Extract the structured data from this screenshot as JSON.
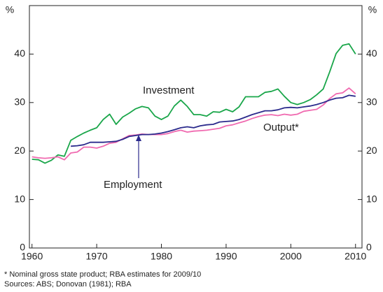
{
  "chart_data": {
    "type": "line",
    "ylabel": "%",
    "x": [
      1960,
      1961,
      1962,
      1963,
      1964,
      1965,
      1966,
      1967,
      1968,
      1969,
      1970,
      1971,
      1972,
      1973,
      1974,
      1975,
      1976,
      1977,
      1978,
      1979,
      1980,
      1981,
      1982,
      1983,
      1984,
      1985,
      1986,
      1987,
      1988,
      1989,
      1990,
      1991,
      1992,
      1993,
      1994,
      1995,
      1996,
      1997,
      1998,
      1999,
      2000,
      2001,
      2002,
      2003,
      2004,
      2005,
      2006,
      2007,
      2008,
      2009,
      2010
    ],
    "series": [
      {
        "name": "Investment",
        "color": "#1aa64a",
        "values": [
          18.3,
          18.2,
          17.5,
          18.1,
          19.2,
          18.9,
          22.2,
          23,
          23.7,
          24.3,
          24.8,
          26.5,
          27.6,
          25.5,
          27,
          27.8,
          28.7,
          29.2,
          28.9,
          27.2,
          26.5,
          27.2,
          29.3,
          30.5,
          29.2,
          27.5,
          27.5,
          27.2,
          28.1,
          28,
          28.6,
          28.1,
          29.1,
          31.2,
          31.2,
          31.2,
          32.1,
          32.3,
          32.8,
          31.3,
          30,
          29.6,
          30,
          30.6,
          31.6,
          32.8,
          36.3,
          40.1,
          41.8,
          42.1,
          40
        ]
      },
      {
        "name": "Output*",
        "color": "#f06ab0",
        "values": [
          18.8,
          18.6,
          18.5,
          18.6,
          18.8,
          18.2,
          19.6,
          19.8,
          20.8,
          20.8,
          20.6,
          21,
          21.6,
          21.8,
          22.5,
          23.2,
          23.3,
          23.5,
          23.4,
          23.4,
          23.4,
          23.6,
          24,
          24.3,
          23.9,
          24.1,
          24.2,
          24.3,
          24.5,
          24.7,
          25.2,
          25.4,
          25.8,
          26.2,
          26.7,
          27.1,
          27.4,
          27.5,
          27.3,
          27.6,
          27.4,
          27.6,
          28.2,
          28.4,
          28.6,
          29.5,
          30.8,
          31.8,
          32,
          33,
          31.8
        ]
      },
      {
        "name": "Employment",
        "color": "#2b2a8c",
        "values": [
          null,
          null,
          null,
          null,
          null,
          null,
          21,
          21.1,
          21.3,
          21.8,
          21.8,
          21.8,
          21.9,
          22,
          22.4,
          23,
          23.2,
          23.4,
          23.4,
          23.5,
          23.7,
          24,
          24.4,
          24.8,
          25,
          24.8,
          25.2,
          25.4,
          25.5,
          26,
          26.1,
          26.2,
          26.5,
          27,
          27.5,
          27.9,
          28.3,
          28.3,
          28.5,
          28.9,
          29,
          28.9,
          29.1,
          29.3,
          29.6,
          30,
          30.5,
          30.9,
          31,
          31.5,
          31.3
        ]
      }
    ],
    "xlim": [
      1959.6,
      2011
    ],
    "xticks": [
      1960,
      1970,
      1980,
      1990,
      2000,
      2010
    ],
    "ylim": [
      0,
      50
    ],
    "yticks": [
      0,
      10,
      20,
      30,
      40
    ],
    "notes": [
      "*     Nominal gross state product; RBA estimates for 2009/10",
      "Sources: ABS; Donovan (1981); RBA"
    ]
  }
}
